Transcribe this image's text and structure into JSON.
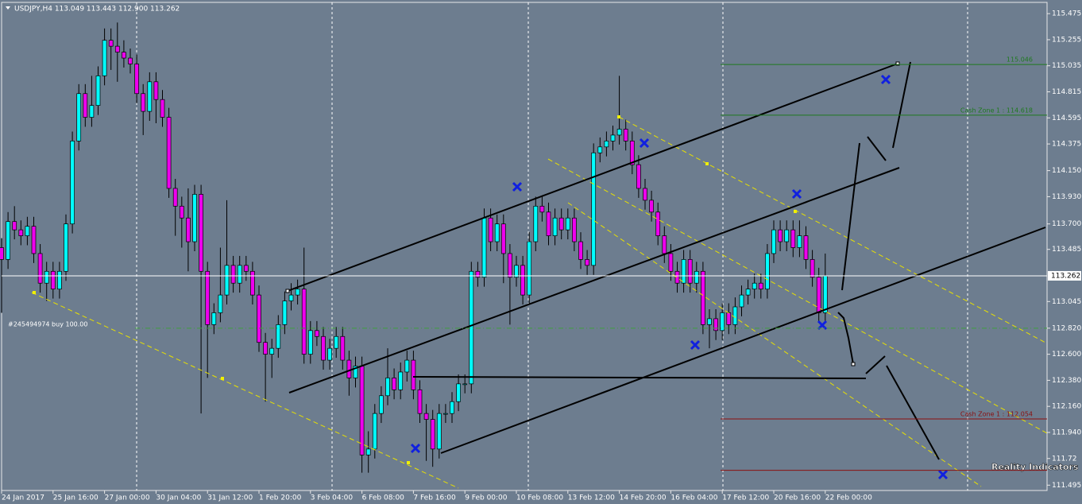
{
  "chart_data": {
    "type": "candlestick",
    "title": "USDJPY,H4  113.049 113.443 112.900 113.262",
    "up_color": "#00ffff",
    "down_color": "#ee00ee",
    "open": [
      113.5,
      113.4,
      113.72,
      113.65,
      113.6,
      113.68,
      113.45,
      113.2,
      113.3,
      113.15,
      113.3,
      113.7,
      114.4,
      114.8,
      114.6,
      114.7,
      114.95,
      115.25,
      115.2,
      115.15,
      115.1,
      115.05,
      114.8,
      114.65,
      114.9,
      114.75,
      114.6,
      114.0,
      113.85,
      113.75,
      113.55,
      113.95,
      113.3,
      112.85,
      112.95,
      113.1,
      113.35,
      113.2,
      113.35,
      113.3,
      113.1,
      112.7,
      112.6,
      112.65,
      112.85,
      113.05,
      113.1,
      113.15,
      112.6,
      112.8,
      112.75,
      112.55,
      112.65,
      112.75,
      112.55,
      112.4,
      112.5,
      111.75,
      111.8,
      112.1,
      112.25,
      112.4,
      112.3,
      112.45,
      112.55,
      112.3,
      112.1,
      112.05,
      111.8,
      112.1,
      112.1,
      112.2,
      112.35,
      112.35,
      113.3,
      113.25,
      113.75,
      113.55,
      113.7,
      113.45,
      113.25,
      113.35,
      113.1,
      113.55,
      113.85,
      113.8,
      113.6,
      113.75,
      113.65,
      113.75,
      113.55,
      113.4,
      113.35,
      114.3,
      114.35,
      114.4,
      114.45,
      114.5,
      114.4,
      114.2,
      114.0,
      113.9,
      113.8,
      113.6,
      113.45,
      113.3,
      113.2,
      113.4,
      113.2,
      113.3,
      112.85,
      112.9,
      112.8,
      112.95,
      112.85,
      113.0,
      113.1,
      113.15,
      113.2,
      113.15,
      113.45,
      113.65,
      113.55,
      113.65,
      113.5,
      113.6,
      113.4,
      113.25,
      112.95
    ],
    "high": [
      113.58,
      113.8,
      113.85,
      113.73,
      113.76,
      113.76,
      113.53,
      113.38,
      113.38,
      113.38,
      113.78,
      114.48,
      114.88,
      114.88,
      114.95,
      115.03,
      115.35,
      115.35,
      115.4,
      115.25,
      115.18,
      115.13,
      114.88,
      114.98,
      114.98,
      114.83,
      114.68,
      114.08,
      113.93,
      114.0,
      114.03,
      114.03,
      113.38,
      113.03,
      113.5,
      113.9,
      113.43,
      113.43,
      113.43,
      113.38,
      113.18,
      112.78,
      112.73,
      112.93,
      113.13,
      113.2,
      113.23,
      113.5,
      112.88,
      112.88,
      112.83,
      112.73,
      112.83,
      112.83,
      112.63,
      112.58,
      112.58,
      111.95,
      112.18,
      112.33,
      112.65,
      112.48,
      112.53,
      112.63,
      112.63,
      112.38,
      112.18,
      112.13,
      112.18,
      112.18,
      112.28,
      112.43,
      112.43,
      113.38,
      113.38,
      113.83,
      113.83,
      113.78,
      113.78,
      113.53,
      113.43,
      113.43,
      113.63,
      113.93,
      113.93,
      113.88,
      113.83,
      113.83,
      113.83,
      113.83,
      113.63,
      113.48,
      114.38,
      114.43,
      114.48,
      114.53,
      114.95,
      114.58,
      114.48,
      114.28,
      114.08,
      113.98,
      113.88,
      113.68,
      113.53,
      113.38,
      113.48,
      113.48,
      113.38,
      113.38,
      112.98,
      112.98,
      113.03,
      113.03,
      113.08,
      113.18,
      113.23,
      113.28,
      113.28,
      113.53,
      113.73,
      113.73,
      113.73,
      113.73,
      113.73,
      113.68,
      113.48,
      113.33,
      113.45
    ],
    "low": [
      112.95,
      113.32,
      113.57,
      113.52,
      113.52,
      113.37,
      113.12,
      113.05,
      113.07,
      113.07,
      113.22,
      113.62,
      114.32,
      114.52,
      114.52,
      114.62,
      114.87,
      115.0,
      114.9,
      115.02,
      114.97,
      114.72,
      114.45,
      114.57,
      114.55,
      114.52,
      113.92,
      113.6,
      113.5,
      113.3,
      113.47,
      112.1,
      112.4,
      112.77,
      112.87,
      113.02,
      113.12,
      113.12,
      113.22,
      113.02,
      112.62,
      112.2,
      112.4,
      112.57,
      112.77,
      112.97,
      113.02,
      112.52,
      112.52,
      112.67,
      112.47,
      112.47,
      112.57,
      112.47,
      112.25,
      112.32,
      111.6,
      111.6,
      111.72,
      112.02,
      112.17,
      112.22,
      112.22,
      112.37,
      112.22,
      112.02,
      111.7,
      111.65,
      111.72,
      112.02,
      112.02,
      112.12,
      112.27,
      112.27,
      113.17,
      113.17,
      113.47,
      113.47,
      113.2,
      112.85,
      113.17,
      113.02,
      113.02,
      113.47,
      113.72,
      113.52,
      113.52,
      113.57,
      113.57,
      113.47,
      113.32,
      113.27,
      113.27,
      114.22,
      114.27,
      114.32,
      114.37,
      114.32,
      114.12,
      113.92,
      113.82,
      113.72,
      113.52,
      113.37,
      113.22,
      113.12,
      113.12,
      113.12,
      113.12,
      112.77,
      112.65,
      112.72,
      112.72,
      112.77,
      112.77,
      112.92,
      113.02,
      113.07,
      113.07,
      113.07,
      113.37,
      113.47,
      113.47,
      113.42,
      113.42,
      113.32,
      113.17,
      112.87,
      112.87
    ],
    "close": [
      113.4,
      113.72,
      113.65,
      113.6,
      113.68,
      113.45,
      113.2,
      113.3,
      113.15,
      113.3,
      113.7,
      114.4,
      114.8,
      114.6,
      114.7,
      114.95,
      115.25,
      115.2,
      115.15,
      115.1,
      115.05,
      114.8,
      114.65,
      114.9,
      114.75,
      114.6,
      114.0,
      113.85,
      113.75,
      113.55,
      113.95,
      113.3,
      112.85,
      112.95,
      113.1,
      113.35,
      113.2,
      113.35,
      113.3,
      113.1,
      112.7,
      112.6,
      112.65,
      112.85,
      113.05,
      113.1,
      113.15,
      112.6,
      112.8,
      112.75,
      112.55,
      112.65,
      112.75,
      112.55,
      112.4,
      112.5,
      111.75,
      111.8,
      112.1,
      112.25,
      112.4,
      112.3,
      112.45,
      112.55,
      112.3,
      112.1,
      112.05,
      111.8,
      112.1,
      112.1,
      112.2,
      112.35,
      112.35,
      113.3,
      113.25,
      113.75,
      113.55,
      113.7,
      113.45,
      113.25,
      113.35,
      113.1,
      113.55,
      113.85,
      113.8,
      113.6,
      113.75,
      113.65,
      113.75,
      113.55,
      113.4,
      113.35,
      114.3,
      114.35,
      114.4,
      114.45,
      114.5,
      114.4,
      114.2,
      114.0,
      113.9,
      113.8,
      113.6,
      113.45,
      113.3,
      113.2,
      113.4,
      113.2,
      113.3,
      112.85,
      112.9,
      112.8,
      112.95,
      112.85,
      113.0,
      113.1,
      113.15,
      113.2,
      113.15,
      113.45,
      113.65,
      113.55,
      113.65,
      113.5,
      113.6,
      113.4,
      113.25,
      112.95,
      113.26
    ],
    "xticks": [
      {
        "value": 0,
        "label": "24 Jan 2017"
      },
      {
        "value": 8,
        "label": "25 Jan 16:00"
      },
      {
        "value": 16,
        "label": "27 Jan 00:00"
      },
      {
        "value": 24,
        "label": "30 Jan 04:00"
      },
      {
        "value": 32,
        "label": "31 Jan 12:00"
      },
      {
        "value": 40,
        "label": "1 Feb 20:00"
      },
      {
        "value": 48,
        "label": "3 Feb 04:00"
      },
      {
        "value": 56,
        "label": "6 Feb 08:00"
      },
      {
        "value": 64,
        "label": "7 Feb 16:00"
      },
      {
        "value": 72,
        "label": "9 Feb 00:00"
      },
      {
        "value": 80,
        "label": "10 Feb 08:00"
      },
      {
        "value": 88,
        "label": "13 Feb 12:00"
      },
      {
        "value": 96,
        "label": "14 Feb 20:00"
      },
      {
        "value": 104,
        "label": "16 Feb 04:00"
      },
      {
        "value": 112,
        "label": "17 Feb 12:00"
      },
      {
        "value": 120,
        "label": "20 Feb 16:00"
      },
      {
        "value": 128,
        "label": "22 Feb 00:00"
      }
    ],
    "ylim": [
      111.45,
      115.57
    ],
    "yticks": [
      115.475,
      115.255,
      115.035,
      114.815,
      114.595,
      114.375,
      {
        "value": 114.15,
        "label": "114.150"
      },
      {
        "value": 113.93,
        "label": "113.930"
      },
      {
        "value": 113.7,
        "label": "113.700"
      },
      113.485,
      113.045,
      {
        "value": 112.82,
        "label": "112.820"
      },
      {
        "value": 112.6,
        "label": "112.600"
      },
      {
        "value": 112.38,
        "label": "112.380"
      },
      {
        "value": 112.16,
        "label": "112.160"
      },
      {
        "value": 111.94,
        "label": "111.940"
      },
      111.72,
      111.495
    ],
    "current_price": 113.262,
    "order": {
      "value": 112.82,
      "label": "#245494974 buy 100.00",
      "color": "#3fa03f"
    },
    "levels": [
      {
        "value": 115.046,
        "color": "#1f7a1f"
      },
      {
        "value": 114.618,
        "label": "Cash Zone 1 : 114.618",
        "color": "#1f7a1f"
      },
      {
        "value": 112.054,
        "label": "Cash Zone 1 : 112.054",
        "color": "#8b1010"
      },
      {
        "value": 111.62,
        "color": "#8b1010"
      }
    ],
    "logo_text": "Reality Indicators"
  }
}
